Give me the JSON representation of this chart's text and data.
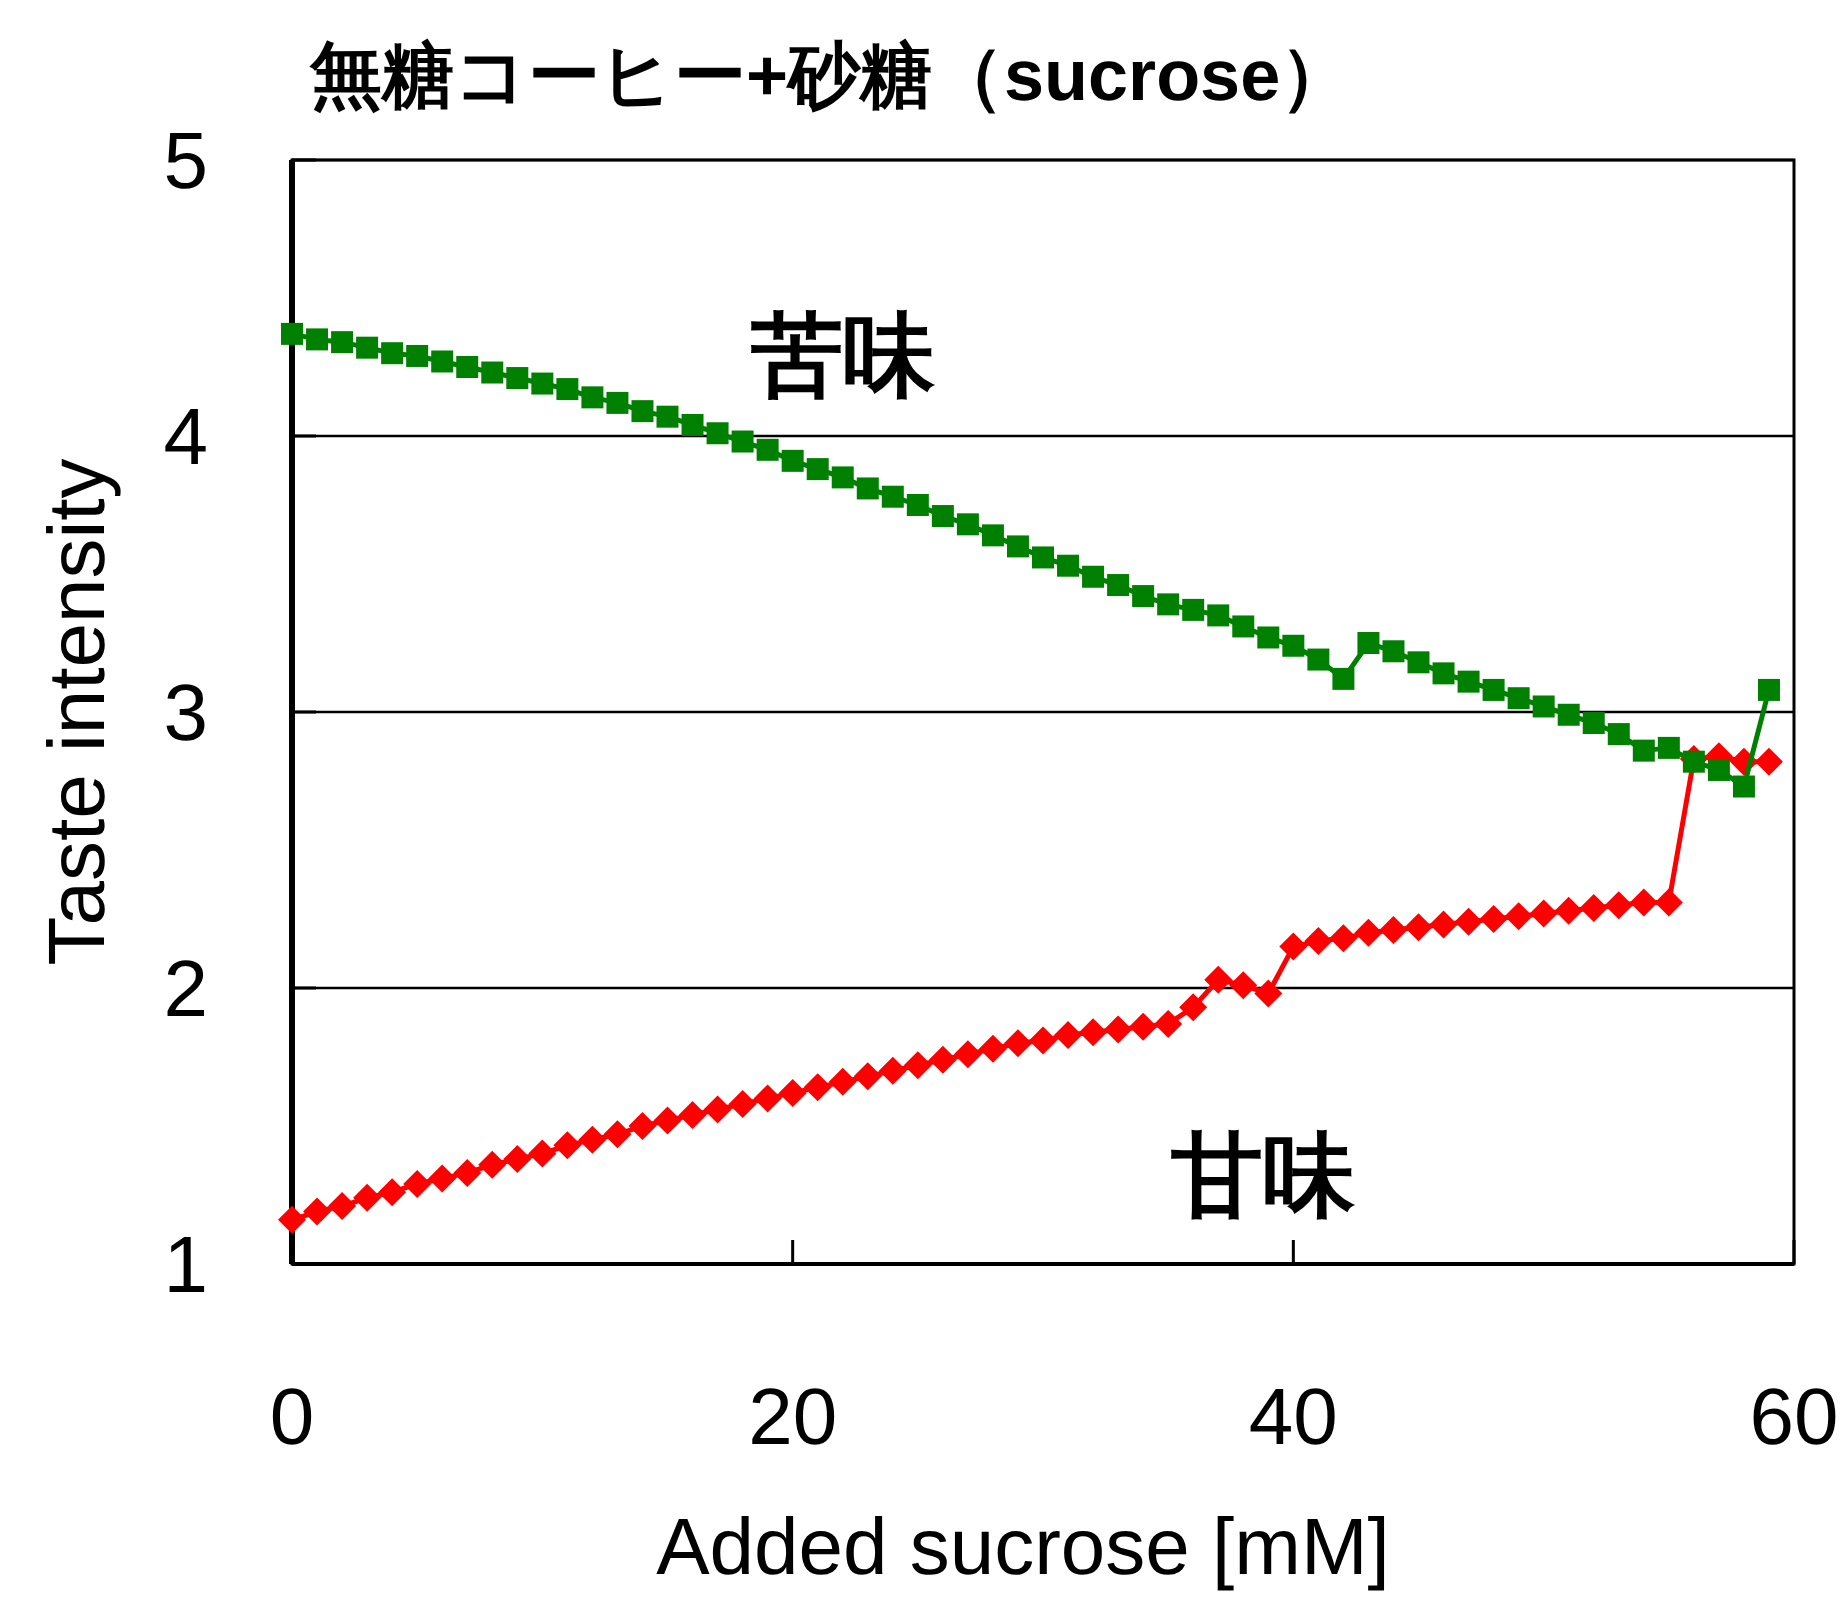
{
  "chart_data": {
    "type": "line",
    "title": "無糖コーヒー+砂糖（sucrose）",
    "xlabel": "Added sucrose [mM]",
    "ylabel": "Taste intensity",
    "x": [
      0,
      1,
      2,
      3,
      4,
      5,
      6,
      7,
      8,
      9,
      10,
      11,
      12,
      13,
      14,
      15,
      16,
      17,
      18,
      19,
      20,
      21,
      22,
      23,
      24,
      25,
      26,
      27,
      28,
      29,
      30,
      31,
      32,
      33,
      34,
      35,
      36,
      37,
      38,
      39,
      40,
      41,
      42,
      43,
      44,
      45,
      46,
      47,
      48,
      49,
      50,
      51,
      52,
      53,
      54,
      55,
      56,
      57,
      58,
      59
    ],
    "series": [
      {
        "name": "苦味",
        "color": "#008000",
        "marker": "square",
        "values": [
          4.37,
          4.35,
          4.34,
          4.32,
          4.3,
          4.29,
          4.27,
          4.25,
          4.23,
          4.21,
          4.19,
          4.17,
          4.14,
          4.12,
          4.09,
          4.07,
          4.04,
          4.01,
          3.98,
          3.95,
          3.91,
          3.88,
          3.85,
          3.81,
          3.78,
          3.75,
          3.71,
          3.68,
          3.64,
          3.6,
          3.56,
          3.53,
          3.49,
          3.46,
          3.42,
          3.39,
          3.37,
          3.35,
          3.31,
          3.27,
          3.24,
          3.19,
          3.12,
          3.25,
          3.22,
          3.18,
          3.14,
          3.11,
          3.08,
          3.05,
          3.02,
          2.99,
          2.96,
          2.92,
          2.86,
          2.87,
          2.82,
          2.79,
          2.73,
          3.08
        ]
      },
      {
        "name": "甘味",
        "color": "#ff0000",
        "marker": "diamond",
        "values": [
          1.16,
          1.19,
          1.21,
          1.24,
          1.26,
          1.29,
          1.31,
          1.33,
          1.36,
          1.38,
          1.4,
          1.43,
          1.45,
          1.47,
          1.5,
          1.52,
          1.54,
          1.56,
          1.58,
          1.6,
          1.62,
          1.64,
          1.66,
          1.68,
          1.7,
          1.72,
          1.74,
          1.76,
          1.78,
          1.8,
          1.81,
          1.83,
          1.84,
          1.85,
          1.86,
          1.87,
          1.93,
          2.03,
          2.01,
          1.98,
          2.15,
          2.17,
          2.18,
          2.2,
          2.21,
          2.22,
          2.23,
          2.24,
          2.25,
          2.26,
          2.27,
          2.28,
          2.29,
          2.3,
          2.31,
          2.31,
          2.83,
          2.84,
          2.82,
          2.82
        ]
      }
    ],
    "xlim": [
      0,
      60
    ],
    "xticks": [
      0,
      20,
      40,
      60
    ],
    "ylim": [
      1,
      5
    ],
    "yticks": [
      1,
      2,
      3,
      4,
      5
    ],
    "grid": "y",
    "legend": false
  }
}
